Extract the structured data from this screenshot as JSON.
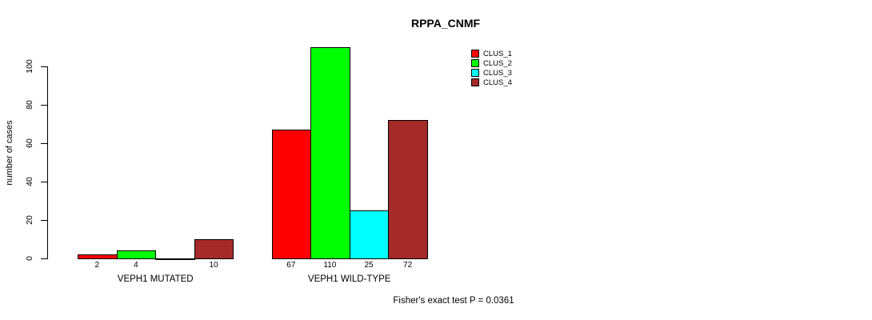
{
  "chart_data": {
    "type": "bar",
    "title": "RPPA_CNMF",
    "ylabel": "number of cases",
    "xlabel": "",
    "ylim": [
      0,
      110
    ],
    "yticks": [
      0,
      20,
      40,
      60,
      80,
      100
    ],
    "grid": false,
    "legend_position": "top-right",
    "categories": [
      "VEPH1 MUTATED",
      "VEPH1 WILD-TYPE"
    ],
    "series": [
      {
        "name": "CLUS_1",
        "color": "#ff0000",
        "values": [
          2,
          67
        ]
      },
      {
        "name": "CLUS_2",
        "color": "#00ff00",
        "values": [
          4,
          110
        ]
      },
      {
        "name": "CLUS_3",
        "color": "#00ffff",
        "values": [
          0,
          25
        ]
      },
      {
        "name": "CLUS_4",
        "color": "#a52a2a",
        "values": [
          10,
          72
        ]
      }
    ],
    "bar_value_labels": [
      [
        "2",
        "4",
        "",
        "10"
      ],
      [
        "67",
        "110",
        "25",
        "72"
      ]
    ],
    "annotation": "Fisher's exact test P = 0.0361",
    "axis_color": "#000000",
    "bar_border_color": "#000000",
    "background_color": "#ffffff"
  }
}
